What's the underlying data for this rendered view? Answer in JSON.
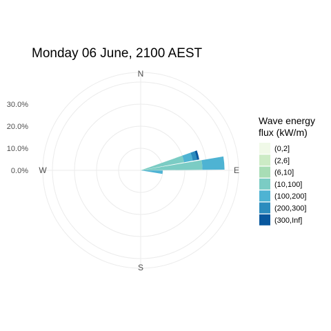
{
  "chart_data": {
    "type": "polar-bar",
    "title": "Monday 06 June, 2100 AEST",
    "radial_ticks": [
      "0.0%",
      "10.0%",
      "20.0%",
      "30.0%"
    ],
    "radial_values": [
      0,
      10,
      20,
      30
    ],
    "radial_max": 42,
    "directions": [
      "N",
      "E",
      "S",
      "W"
    ],
    "legend_title": [
      "Wave energy",
      "flux (kW/m)"
    ],
    "legend": [
      {
        "label": "(0,2]",
        "color": "#f0f9e8"
      },
      {
        "label": "(2,6]",
        "color": "#ccebc5"
      },
      {
        "label": "(6,10]",
        "color": "#a8ddb5"
      },
      {
        "label": "(10,100]",
        "color": "#7bccc4"
      },
      {
        "label": "(100,200]",
        "color": "#4eb3d3"
      },
      {
        "label": "(200,300]",
        "color": "#2b8cbe"
      },
      {
        "label": "(300,Inf]",
        "color": "#08589e"
      }
    ],
    "wedges": [
      {
        "direction_deg": 75,
        "segments": [
          {
            "bin": "(10,100]",
            "value": 20
          },
          {
            "bin": "(100,200]",
            "value": 4
          },
          {
            "bin": "(200,300]",
            "value": 2
          },
          {
            "bin": "(300,Inf]",
            "value": 1
          }
        ]
      },
      {
        "direction_deg": 85,
        "segments": [
          {
            "bin": "(10,100]",
            "value": 28
          },
          {
            "bin": "(100,200]",
            "value": 10
          }
        ]
      },
      {
        "direction_deg": 95,
        "segments": [
          {
            "bin": "(100,200]",
            "value": 10
          }
        ]
      }
    ]
  }
}
